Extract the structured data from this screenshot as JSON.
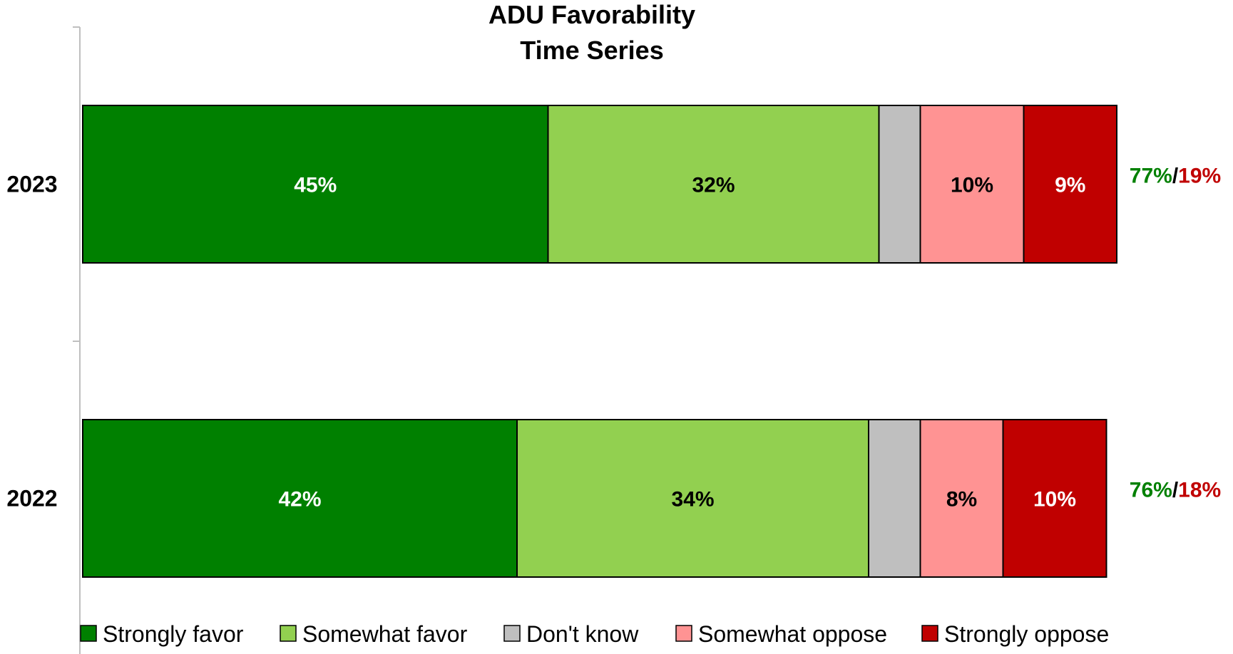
{
  "chart_data": {
    "type": "bar",
    "orientation": "horizontal",
    "stacked": true,
    "title": [
      "ADU Favorability",
      "Time Series"
    ],
    "categories": [
      "2023",
      "2022"
    ],
    "series": [
      {
        "name": "Strongly favor",
        "values": [
          45,
          42
        ],
        "labels": [
          "45%",
          "42%"
        ],
        "color": "#008000",
        "label_color": "#ffffff"
      },
      {
        "name": "Somewhat favor",
        "values": [
          32,
          34
        ],
        "labels": [
          "32%",
          "34%"
        ],
        "color": "#92d050",
        "label_color": "#000000"
      },
      {
        "name": "Don't know",
        "values": [
          4,
          5
        ],
        "labels": [
          "",
          ""
        ],
        "color": "#bfbfbf",
        "label_color": "#000000"
      },
      {
        "name": "Somewhat oppose",
        "values": [
          10,
          8
        ],
        "labels": [
          "10%",
          "8%"
        ],
        "color": "#ff9393",
        "label_color": "#000000"
      },
      {
        "name": "Strongly oppose",
        "values": [
          9,
          10
        ],
        "labels": [
          "9%",
          "10%"
        ],
        "color": "#c00000",
        "label_color": "#ffffff"
      }
    ],
    "net_labels": [
      {
        "favor": "77%",
        "sep": "/",
        "oppose": "19%"
      },
      {
        "favor": "76%",
        "sep": "/",
        "oppose": "18%"
      }
    ],
    "net_colors": {
      "favor": "#008000",
      "sep": "#000000",
      "oppose": "#c00000"
    },
    "xlim": [
      0,
      100
    ],
    "grid": false,
    "legend_position": "bottom"
  }
}
